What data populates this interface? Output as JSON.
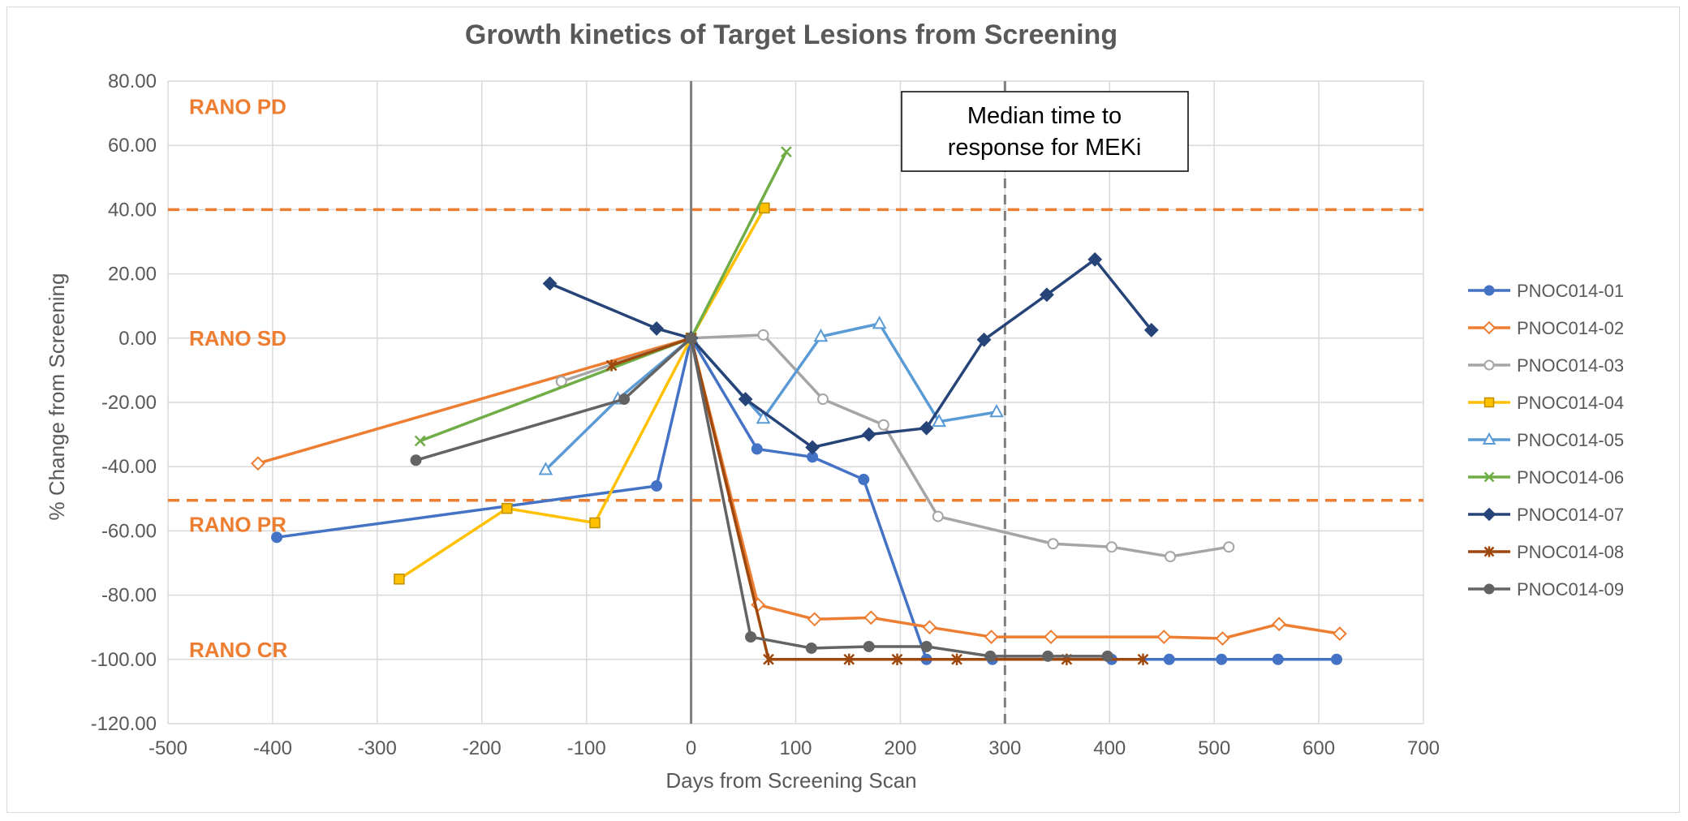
{
  "chart_data": {
    "type": "line",
    "title": "Growth kinetics of Target Lesions from Screening",
    "xlabel": "Days from Screening Scan",
    "ylabel": "% Change from Screening",
    "xlim": [
      -500,
      700
    ],
    "ylim": [
      -120,
      80
    ],
    "xticks": [
      -500,
      -400,
      -300,
      -200,
      -100,
      0,
      100,
      200,
      300,
      400,
      500,
      600,
      700
    ],
    "yticks": [
      80,
      60,
      40,
      20,
      0,
      -20,
      -40,
      -60,
      -80,
      -100,
      -120
    ],
    "xtick_labels": [
      "-500",
      "-400",
      "-300",
      "-200",
      "-100",
      "0",
      "100",
      "200",
      "300",
      "400",
      "500",
      "600",
      "700"
    ],
    "ytick_labels": [
      "80.00",
      "60.00",
      "40.00",
      "20.00",
      "0.00",
      "-20.00",
      "-40.00",
      "-60.00",
      "-80.00",
      "-100.00",
      "-120.00"
    ],
    "grid": true,
    "legend_position": "right",
    "reference_lines": [
      {
        "axis": "y",
        "value": 40,
        "style": "dashed",
        "color": "#ed7d31"
      },
      {
        "axis": "y",
        "value": -50.5,
        "style": "dashed",
        "color": "#ed7d31"
      },
      {
        "axis": "x",
        "value": 0,
        "style": "solid",
        "color": "#808080"
      },
      {
        "axis": "x",
        "value": 300,
        "style": "dashed",
        "color": "#7f7f7f"
      }
    ],
    "region_labels": [
      {
        "text": "RANO PD",
        "y": 72
      },
      {
        "text": "RANO SD",
        "y": 0
      },
      {
        "text": "RANO PR",
        "y": -58
      },
      {
        "text": "RANO CR",
        "y": -97
      }
    ],
    "annotation": {
      "lines": [
        "Median time to",
        "response for MEKi"
      ],
      "x": 300,
      "y": 60
    },
    "series": [
      {
        "name": "PNOC014-01",
        "color": "#4472c4",
        "marker": "circle",
        "points": [
          [
            -396,
            -62
          ],
          [
            -33,
            -46
          ],
          [
            0,
            0
          ],
          [
            63,
            -34.5
          ],
          [
            116,
            -37
          ],
          [
            165,
            -44
          ],
          [
            225,
            -100
          ],
          [
            288,
            -100
          ],
          [
            402,
            -100
          ],
          [
            457,
            -100
          ],
          [
            507,
            -100
          ],
          [
            561,
            -100
          ],
          [
            617,
            -100
          ]
        ]
      },
      {
        "name": "PNOC014-02",
        "color": "#ed7d31",
        "marker": "diamond-open",
        "points": [
          [
            -414,
            -39
          ],
          [
            0,
            0
          ],
          [
            64,
            -83
          ],
          [
            118,
            -87.5
          ],
          [
            172,
            -87
          ],
          [
            228,
            -90
          ],
          [
            287,
            -93
          ],
          [
            344,
            -93
          ],
          [
            452,
            -93
          ],
          [
            508,
            -93.5
          ],
          [
            562,
            -89
          ],
          [
            620,
            -92
          ]
        ]
      },
      {
        "name": "PNOC014-03",
        "color": "#a5a5a5",
        "marker": "circle-open",
        "points": [
          [
            -124,
            -13.5
          ],
          [
            0,
            0
          ],
          [
            69,
            1
          ],
          [
            126,
            -19
          ],
          [
            184,
            -27
          ],
          [
            236,
            -55.5
          ],
          [
            346,
            -64
          ],
          [
            402,
            -65
          ],
          [
            458,
            -68
          ],
          [
            514,
            -65
          ]
        ]
      },
      {
        "name": "PNOC014-04",
        "color": "#ffc000",
        "marker": "square",
        "points": [
          [
            -279,
            -75
          ],
          [
            -176,
            -53
          ],
          [
            -92,
            -57.5
          ],
          [
            0,
            0
          ],
          [
            70,
            40.5
          ]
        ]
      },
      {
        "name": "PNOC014-05",
        "color": "#5b9bd5",
        "marker": "triangle-open",
        "points": [
          [
            -139,
            -41
          ],
          [
            -70,
            -19
          ],
          [
            0,
            0
          ],
          [
            69,
            -25
          ],
          [
            124,
            0.5
          ],
          [
            180,
            4.5
          ],
          [
            237,
            -26
          ],
          [
            292,
            -23
          ]
        ]
      },
      {
        "name": "PNOC014-06",
        "color": "#70ad47",
        "marker": "x",
        "points": [
          [
            -259,
            -32
          ],
          [
            0,
            0
          ],
          [
            91,
            58
          ]
        ]
      },
      {
        "name": "PNOC014-07",
        "color": "#264478",
        "marker": "diamond",
        "points": [
          [
            -135,
            17
          ],
          [
            -33,
            3
          ],
          [
            0,
            0
          ],
          [
            52,
            -19
          ],
          [
            116,
            -34
          ],
          [
            170,
            -30
          ],
          [
            225,
            -28
          ],
          [
            280,
            -0.5
          ],
          [
            340,
            13.5
          ],
          [
            386,
            24.5
          ],
          [
            440,
            2.5
          ]
        ]
      },
      {
        "name": "PNOC014-08",
        "color": "#9e480e",
        "marker": "star",
        "points": [
          [
            -76,
            -8.5
          ],
          [
            0,
            0
          ],
          [
            74,
            -100
          ],
          [
            151,
            -100
          ],
          [
            197,
            -100
          ],
          [
            254,
            -100
          ],
          [
            359,
            -100
          ],
          [
            432,
            -100
          ]
        ]
      },
      {
        "name": "PNOC014-09",
        "color": "#636363",
        "marker": "circle",
        "points": [
          [
            -263,
            -38
          ],
          [
            -64,
            -19
          ],
          [
            0,
            0
          ],
          [
            57,
            -93
          ],
          [
            115,
            -96.5
          ],
          [
            170,
            -96
          ],
          [
            225,
            -96
          ],
          [
            286,
            -99
          ],
          [
            341,
            -99
          ],
          [
            398,
            -99
          ]
        ]
      }
    ]
  }
}
